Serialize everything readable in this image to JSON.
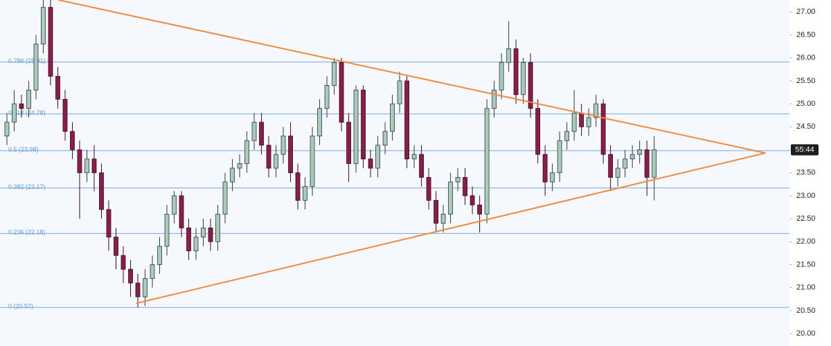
{
  "chart_data": {
    "type": "candlestick",
    "open": [
      24.3,
      24.6,
      25.0,
      24.9,
      25.3,
      26.3,
      27.1,
      25.6,
      25.1,
      24.4,
      24.0,
      23.5,
      23.8,
      23.5,
      22.7,
      22.1,
      21.7,
      21.4,
      21.1,
      20.8,
      21.2,
      21.5,
      21.9,
      22.6,
      23.0,
      22.3,
      21.8,
      22.1,
      22.3,
      22.0,
      22.6,
      23.3,
      23.6,
      23.7,
      24.2,
      24.6,
      24.1,
      23.6,
      23.9,
      24.3,
      23.5,
      22.9,
      23.2,
      24.3,
      24.9,
      25.4,
      25.9,
      24.6,
      23.7,
      25.3,
      23.8,
      23.6,
      24.1,
      24.4,
      25.0,
      25.5,
      23.8,
      23.9,
      23.4,
      22.9,
      22.4,
      22.6,
      23.3,
      23.4,
      23.0,
      22.8,
      22.6,
      24.9,
      25.3,
      25.9,
      26.2,
      25.2,
      25.9,
      24.9,
      23.9,
      23.3,
      23.5,
      24.2,
      24.4,
      24.8,
      24.5,
      24.7,
      25.0,
      23.9,
      23.4,
      23.6,
      23.8,
      23.9,
      24.0,
      23.4
    ],
    "high": [
      24.8,
      25.3,
      25.2,
      25.5,
      26.5,
      27.4,
      27.3,
      25.8,
      25.3,
      24.6,
      24.2,
      24.0,
      24.1,
      23.7,
      22.9,
      22.3,
      21.9,
      21.6,
      21.3,
      21.4,
      21.7,
      22.1,
      22.8,
      23.1,
      23.1,
      22.5,
      22.3,
      22.5,
      22.5,
      22.8,
      23.5,
      23.8,
      23.9,
      24.4,
      24.8,
      24.8,
      24.3,
      24.1,
      24.5,
      24.6,
      23.7,
      23.4,
      24.5,
      25.1,
      25.6,
      26.0,
      26.0,
      24.8,
      25.4,
      25.4,
      24.0,
      24.3,
      24.6,
      25.2,
      25.7,
      25.6,
      24.1,
      24.1,
      23.6,
      23.1,
      22.8,
      23.5,
      23.6,
      23.6,
      23.2,
      23.0,
      25.1,
      25.5,
      26.1,
      26.8,
      26.4,
      26.0,
      26.1,
      25.1,
      24.1,
      23.7,
      24.4,
      24.6,
      25.3,
      25.0,
      24.9,
      25.2,
      25.1,
      24.1,
      23.8,
      24.0,
      24.1,
      24.2,
      24.2,
      24.3
    ],
    "low": [
      24.1,
      24.4,
      24.7,
      24.7,
      25.1,
      26.1,
      25.4,
      24.9,
      24.2,
      23.8,
      22.5,
      23.3,
      23.1,
      22.5,
      21.8,
      21.4,
      21.1,
      20.8,
      20.57,
      20.6,
      21.0,
      21.3,
      21.7,
      22.4,
      22.1,
      21.6,
      21.6,
      21.9,
      21.8,
      21.8,
      22.4,
      23.1,
      23.4,
      23.5,
      24.0,
      23.9,
      23.4,
      23.4,
      23.7,
      23.3,
      22.7,
      22.7,
      23.0,
      24.1,
      24.7,
      25.2,
      24.4,
      23.3,
      23.5,
      23.6,
      23.4,
      23.4,
      23.9,
      24.2,
      24.8,
      23.6,
      23.6,
      23.2,
      22.7,
      22.2,
      22.2,
      22.4,
      23.1,
      22.8,
      22.6,
      22.2,
      22.4,
      24.7,
      25.1,
      25.7,
      25.0,
      25.0,
      24.7,
      23.7,
      23.0,
      23.1,
      23.3,
      24.0,
      24.2,
      24.3,
      24.3,
      24.5,
      23.7,
      23.1,
      23.2,
      23.4,
      23.6,
      23.7,
      23.0,
      22.9
    ],
    "close": [
      24.6,
      25.0,
      24.9,
      25.3,
      26.3,
      27.1,
      25.6,
      25.1,
      24.4,
      24.0,
      23.5,
      23.8,
      23.5,
      22.7,
      22.1,
      21.7,
      21.4,
      21.1,
      20.8,
      21.2,
      21.5,
      21.9,
      22.6,
      23.0,
      22.3,
      21.8,
      22.1,
      22.3,
      22.0,
      22.6,
      23.3,
      23.6,
      23.7,
      24.2,
      24.6,
      24.1,
      23.6,
      23.9,
      24.3,
      23.5,
      22.9,
      23.2,
      24.3,
      24.9,
      25.4,
      25.9,
      24.6,
      23.7,
      25.3,
      23.8,
      23.6,
      24.1,
      24.4,
      25.0,
      25.5,
      23.8,
      23.9,
      23.4,
      22.9,
      22.4,
      22.6,
      23.3,
      23.4,
      23.0,
      22.8,
      22.6,
      24.9,
      25.3,
      25.9,
      26.2,
      25.2,
      25.9,
      24.9,
      23.9,
      23.3,
      23.5,
      24.2,
      24.4,
      24.8,
      24.5,
      24.7,
      25.0,
      23.9,
      23.4,
      23.6,
      23.8,
      23.9,
      24.0,
      23.4,
      24.0
    ],
    "up_color": "#a9cbbb",
    "down_color": "#8c1d47",
    "xlim": [
      -0.95,
      107.6
    ],
    "ylim": [
      19.73,
      27.26
    ],
    "yticks": [
      {
        "value": 20,
        "label": "20.00"
      },
      {
        "value": 20.5,
        "label": "20.50"
      },
      {
        "value": 21,
        "label": "21.00"
      },
      {
        "value": 21.5,
        "label": "21.50"
      },
      {
        "value": 22,
        "label": "22.00"
      },
      {
        "value": 22.5,
        "label": "22.50"
      },
      {
        "value": 23,
        "label": "23.00"
      },
      {
        "value": 23.5,
        "label": "23.50"
      },
      {
        "value": 24,
        "label": "24.00"
      },
      {
        "value": 24.5,
        "label": "24.50"
      },
      {
        "value": 25,
        "label": "25.00"
      },
      {
        "value": 25.5,
        "label": "25.50"
      },
      {
        "value": 26,
        "label": "26.00"
      },
      {
        "value": 26.5,
        "label": "26.50"
      },
      {
        "value": 27,
        "label": "27.00"
      }
    ],
    "fib_levels": [
      {
        "value": 20.57,
        "label": "0 (20.57)"
      },
      {
        "value": 22.18,
        "label": "0.236 (22.18)"
      },
      {
        "value": 23.17,
        "label": "0.382 (23.17)"
      },
      {
        "value": 23.98,
        "label": "0.5 (23.98)"
      },
      {
        "value": 24.78,
        "label": "0.618 (24.78)"
      },
      {
        "value": 25.91,
        "label": "0.786 (25.91)"
      }
    ],
    "fib_color": "#7aa7e3",
    "trendlines": [
      {
        "start": [
          7.1,
          27.26
        ],
        "end": [
          104.3,
          23.93
        ]
      },
      {
        "start": [
          17.8,
          20.66
        ],
        "end": [
          104.3,
          23.93
        ]
      }
    ],
    "trendline_color": "#f08a3c",
    "countdown": "55:44"
  }
}
